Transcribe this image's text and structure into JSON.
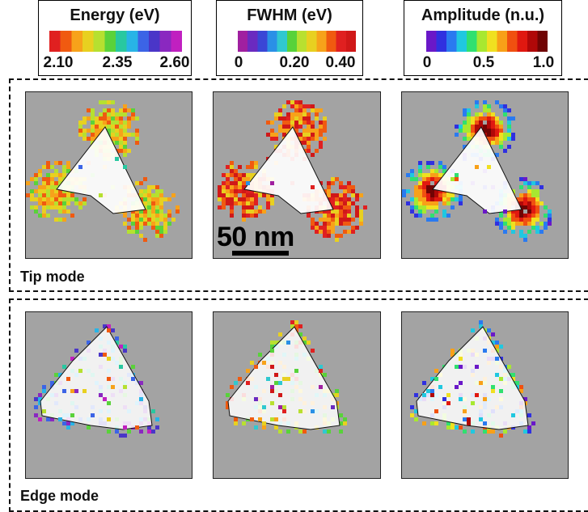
{
  "legends": [
    {
      "title": "Energy (eV)",
      "ticks": [
        "2.10",
        "2.35",
        "2.60"
      ],
      "colors": [
        "#e02020",
        "#f05a10",
        "#f7a21a",
        "#e8d020",
        "#b6e030",
        "#5ad23a",
        "#28c8a0",
        "#28b4e6",
        "#3c64e6",
        "#4a36c8",
        "#8a28c0",
        "#c020c0"
      ]
    },
    {
      "title": "FWHM (eV)",
      "ticks": [
        "0",
        "0.20",
        "0.40"
      ],
      "colors": [
        "#a020a0",
        "#6a2ac0",
        "#3a46d6",
        "#2a90e6",
        "#30c8d0",
        "#58d23a",
        "#b8e030",
        "#e8d020",
        "#f7a21a",
        "#f05a10",
        "#e02020",
        "#d01818"
      ]
    },
    {
      "title": "Amplitude (n.u.)",
      "ticks": [
        "0",
        "0.5",
        "1.0"
      ],
      "colors": [
        "#6a18c8",
        "#3030e0",
        "#2a7af0",
        "#20c8e0",
        "#30e070",
        "#a8e830",
        "#f0e020",
        "#f8a018",
        "#f05010",
        "#e01810",
        "#b00808",
        "#700404"
      ]
    }
  ],
  "scale_bar": {
    "label": "50 nm"
  },
  "sections": [
    {
      "label": "Tip mode",
      "panels": [
        "tip-energy",
        "tip-fwhm",
        "tip-amplitude"
      ]
    },
    {
      "label": "Edge mode",
      "panels": [
        "edge-energy",
        "edge-fwhm",
        "edge-amplitude"
      ]
    }
  ],
  "colors": {
    "panel_bg": "#a3a3a3",
    "particle": "#ffffff",
    "frame": "#111111"
  }
}
